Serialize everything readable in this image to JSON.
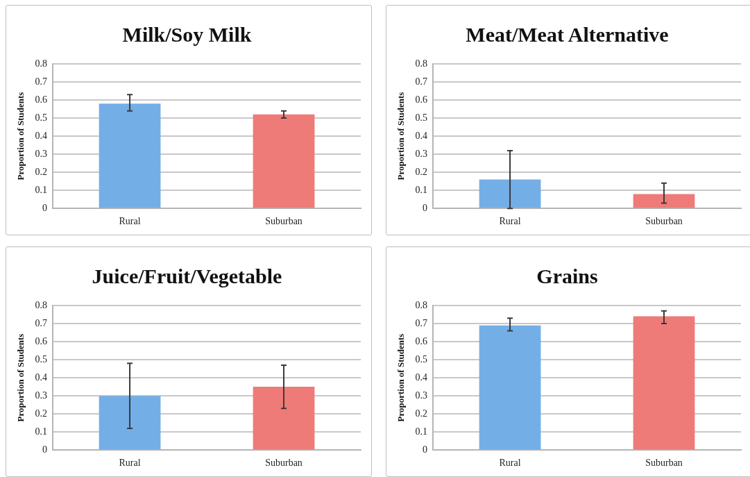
{
  "chart_data": [
    {
      "type": "bar",
      "title": "Milk/Soy Milk",
      "ylabel": "Proportion of Students",
      "categories": [
        "Rural",
        "Suburban"
      ],
      "values": [
        0.58,
        0.52
      ],
      "colors": [
        "#74aee6",
        "#ee7b78"
      ],
      "errors": [
        [
          0.54,
          0.63
        ],
        [
          0.5,
          0.54
        ]
      ],
      "ylim": [
        0,
        0.8
      ],
      "yticks": [
        0,
        0.1,
        0.2,
        0.3,
        0.4,
        0.5,
        0.6,
        0.7,
        0.8
      ],
      "grid": "y"
    },
    {
      "type": "bar",
      "title": "Meat/Meat Alternative",
      "ylabel": "Proportion of Students",
      "categories": [
        "Rural",
        "Suburban"
      ],
      "values": [
        0.16,
        0.08
      ],
      "colors": [
        "#74aee6",
        "#ee7b78"
      ],
      "errors": [
        [
          0.0,
          0.32
        ],
        [
          0.03,
          0.14
        ]
      ],
      "ylim": [
        0,
        0.8
      ],
      "yticks": [
        0,
        0.1,
        0.2,
        0.3,
        0.4,
        0.5,
        0.6,
        0.7,
        0.8
      ],
      "grid": "y"
    },
    {
      "type": "bar",
      "title": "Juice/Fruit/Vegetable",
      "ylabel": "Proportion of Students",
      "categories": [
        "Rural",
        "Suburban"
      ],
      "values": [
        0.3,
        0.35
      ],
      "colors": [
        "#74aee6",
        "#ee7b78"
      ],
      "errors": [
        [
          0.12,
          0.48
        ],
        [
          0.23,
          0.47
        ]
      ],
      "ylim": [
        0,
        0.8
      ],
      "yticks": [
        0,
        0.1,
        0.2,
        0.3,
        0.4,
        0.5,
        0.6,
        0.7,
        0.8
      ],
      "grid": "y"
    },
    {
      "type": "bar",
      "title": "Grains",
      "ylabel": "Proportion of Students",
      "categories": [
        "Rural",
        "Suburban"
      ],
      "values": [
        0.69,
        0.74
      ],
      "colors": [
        "#74aee6",
        "#ee7b78"
      ],
      "errors": [
        [
          0.66,
          0.73
        ],
        [
          0.7,
          0.77
        ]
      ],
      "ylim": [
        0,
        0.8
      ],
      "yticks": [
        0,
        0.1,
        0.2,
        0.3,
        0.4,
        0.5,
        0.6,
        0.7,
        0.8
      ],
      "grid": "y"
    }
  ]
}
